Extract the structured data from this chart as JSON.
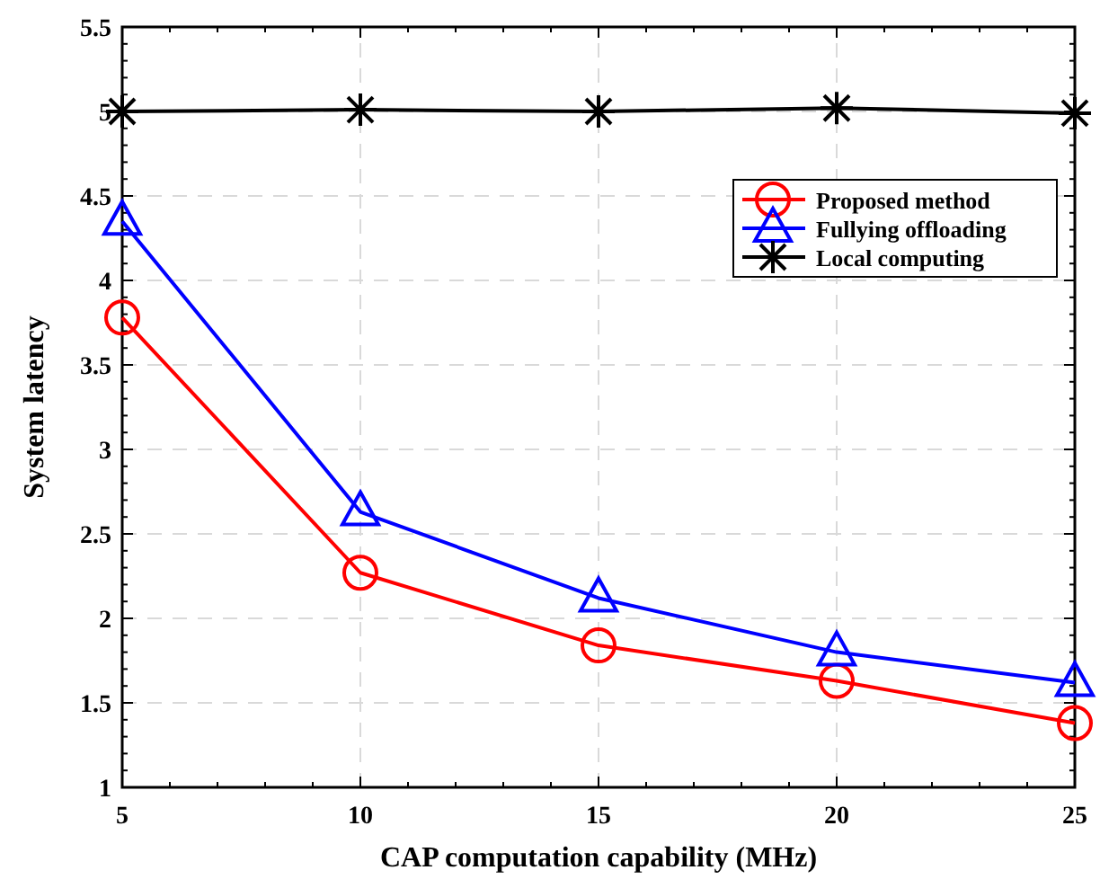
{
  "chart_data": {
    "type": "line",
    "xlabel": "CAP computation capability (MHz)",
    "ylabel": "System latency",
    "x": [
      5,
      10,
      15,
      20,
      25
    ],
    "xlim": [
      5,
      25
    ],
    "xticks": [
      5,
      10,
      15,
      20,
      25
    ],
    "ylim": [
      1,
      5.5
    ],
    "yticks": [
      1,
      1.5,
      2,
      2.5,
      3,
      3.5,
      4,
      4.5,
      5,
      5.5
    ],
    "grid": true,
    "legend": "top right",
    "series": [
      {
        "name": "Proposed method",
        "color": "#ff0000",
        "marker": "circle",
        "values": [
          3.78,
          2.27,
          1.84,
          1.63,
          1.38
        ]
      },
      {
        "name": "Fullying offloading",
        "color": "#0000ff",
        "marker": "triangle",
        "values": [
          4.35,
          2.63,
          2.12,
          1.8,
          1.62
        ]
      },
      {
        "name": "Local computing",
        "color": "#000000",
        "marker": "cross",
        "values": [
          5,
          5.01,
          5,
          5.02,
          4.99
        ]
      }
    ]
  }
}
